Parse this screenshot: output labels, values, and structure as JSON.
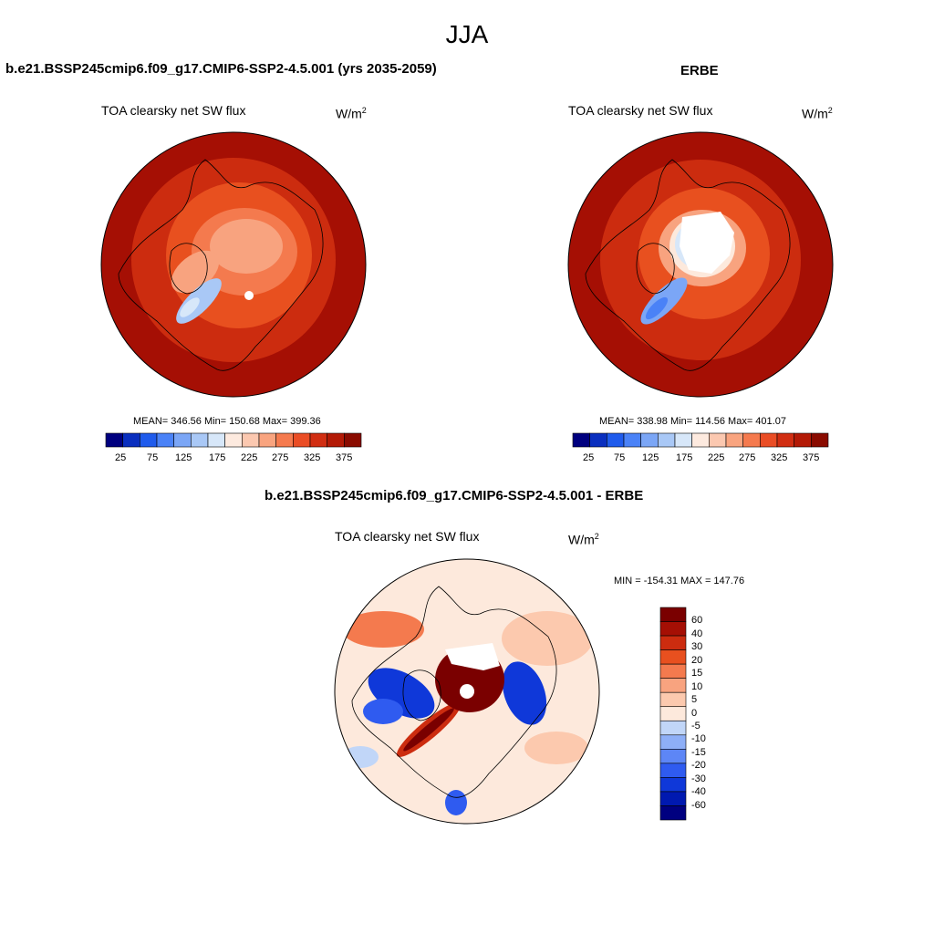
{
  "figure": {
    "title": "JJA"
  },
  "colors": {
    "seq": [
      "#00007f",
      "#0a2fbf",
      "#1f5bec",
      "#4a82f7",
      "#7ba6f6",
      "#a9c8f6",
      "#d7e7f9",
      "#fdeadf",
      "#fbc8b0",
      "#f9a47f",
      "#f57a4e",
      "#ea4d25",
      "#d12e12",
      "#b31a06",
      "#8a0b00"
    ],
    "div": [
      "#000080",
      "#0019b0",
      "#0f38d9",
      "#2f5bf0",
      "#5d86f6",
      "#8eaff7",
      "#c1d6f8",
      "#fde9dc",
      "#fcc9ae",
      "#f8a37f",
      "#f47a4e",
      "#e8501f",
      "#cc2c0f",
      "#a50f04",
      "#7a0000"
    ]
  },
  "panels": [
    {
      "title": "b.e21.BSSP245cmip6.f09_g17.CMIP6-SSP2-4.5.001 (yrs 2035-2059)",
      "variable": "TOA clearsky net SW flux",
      "unit": "W/m",
      "unit_exp": "2",
      "stats": "MEAN= 346.56  Min= 150.68  Max= 399.36",
      "colorbar_ticks": [
        "25",
        "75",
        "125",
        "175",
        "225",
        "275",
        "325",
        "375"
      ]
    },
    {
      "title": "ERBE",
      "variable": "TOA clearsky net SW flux",
      "unit": "W/m",
      "unit_exp": "2",
      "stats": "MEAN= 338.98  Min= 114.56  Max= 401.07",
      "colorbar_ticks": [
        "25",
        "75",
        "125",
        "175",
        "225",
        "275",
        "325",
        "375"
      ]
    },
    {
      "title": "b.e21.BSSP245cmip6.f09_g17.CMIP6-SSP2-4.5.001 - ERBE",
      "variable": "TOA clearsky net SW flux",
      "unit": "W/m",
      "unit_exp": "2",
      "stats": "MIN = -154.31 MAX = 147.76",
      "colorbar_ticks": [
        "60",
        "40",
        "30",
        "20",
        "15",
        "10",
        "5",
        "0",
        "-5",
        "-10",
        "-15",
        "-20",
        "-30",
        "-40",
        "-60"
      ]
    }
  ]
}
